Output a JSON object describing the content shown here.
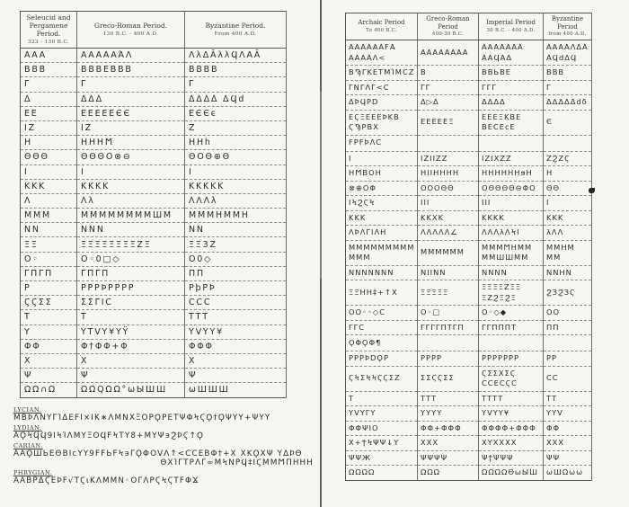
{
  "left_table": {
    "headers": [
      {
        "title": "Seleucid and Pergamene Period.",
        "dates": "323 - 130 B.C."
      },
      {
        "title": "Greco-Roman Period.",
        "dates": "130 B.C. - 400 A.D."
      },
      {
        "title": "Byzantine Period.",
        "dates": "From 400 A.D."
      }
    ],
    "rows": [
      [
        "ΑΑΑ",
        "ΑΑΑΑΑΆΛ",
        "ΛλΔĀλλϤΛΑĀ"
      ],
      [
        "ΒΒΒ",
        "ΒΒΒΕΒΒΒ",
        "ΒΒΒΒ"
      ],
      [
        "Γ",
        "Γ",
        "Γ"
      ],
      [
        "Δ",
        "ΔΔΔ",
        "ΔΔΔΔ ΔϤd"
      ],
      [
        "ΕΕ",
        "ΕΕΕΕΕЄЄ",
        "ΕЄЄϵ"
      ],
      [
        "ΙΖ",
        "ΙΖ",
        "Ζ"
      ],
      [
        "Η",
        "ΗΗΗϺ",
        "ΗΗh"
      ],
      [
        "ΘΘΘ",
        "ΘΘΘΟ⊗⊖",
        "ΘΟΘ⊕Θ"
      ],
      [
        "Ι",
        "Ι",
        "Ι"
      ],
      [
        "ΚΚΚ",
        "ΚΚΚΚ",
        "ΚΚΚΚΚ"
      ],
      [
        "Λ",
        "Λλ",
        "ΛΛΛλ"
      ],
      [
        "ΜΜΜ",
        "ΜΜΜΜΜΜΜΜШΜ",
        "ΜΜΜΗΜΜΗ"
      ],
      [
        "ΝΝ",
        "ΝΝΝ",
        "ΝΝ"
      ],
      [
        "ΞΞ",
        "ΞΞΞΞΞΞΞΞΖΞ",
        "ΞΞ3Ζ"
      ],
      [
        "Ο◦",
        "Ο◦0□◇",
        "Ο0◇"
      ],
      [
        "ΓΠΓΠ",
        "ΓΠΓΠ",
        "ΠΠ"
      ],
      [
        "Ρ",
        "ΡΡΡϷΡΡΡΡ",
        "ΡϸΡϷ"
      ],
      [
        "ϚϚΣΣ",
        "ΣΣΓΙϹ",
        "ϹϹϹ"
      ],
      [
        "Τ",
        "Τ",
        "ΤΤΤ"
      ],
      [
        "Υ",
        "ΥΤVΥ¥ΥΫ",
        "ΥVΥΥ¥"
      ],
      [
        "ΦΦ",
        "Φ†ΦΦ+Φ",
        "ΦΦΦ"
      ],
      [
        "Χ",
        "Χ",
        "Χ"
      ],
      [
        "Ψ",
        "Ψ",
        "Ψ"
      ],
      [
        "ΩΩ∩Ω",
        "ΩΩQΩΩ°ωЫШШ",
        "ωШШШ"
      ]
    ]
  },
  "right_table": {
    "headers": [
      {
        "title": "Archaic Period",
        "dates": "To 400 B.C."
      },
      {
        "title": "Greco-Roman Period",
        "dates": "400-30 B.C."
      },
      {
        "title": "Imperial Period",
        "dates": "30 B.C. - 400 A.D."
      },
      {
        "title": "Byzantine Period",
        "dates": "from 400 A.D."
      }
    ],
    "rows": [
      [
        "ΑΑΑΑΑΑϜΑ\nΑΑΑΑΛ<",
        "ΑΑΑΑΑΑΑΑ",
        "ΑΑΑΑΑΑΑ\nΑΑϤΑΔ",
        "ΑΑΑΑΛΔΑ\nΑϤdΔϤ"
      ],
      [
        "ΒϠΓΚΕΤΜΊΜϹΖ",
        "Β",
        "ΒΒЬΒΕ",
        "ΒΒΒ"
      ],
      [
        "ΓΝΓΛΓ<Ϲ",
        "ΓΓ",
        "ΓΓΓ",
        "Γ"
      ],
      [
        "ΔϷϤΡD",
        "Δ▷Δ",
        "ΔΔΔΔ",
        "ΔΔΔΔΔdδ"
      ],
      [
        "ΕϚΞΕΕΕϷΚΒ\nϚϠΡΒΧ",
        "ΕΕΕΕΕΞ",
        "ΕΕΕΞΚΒΕ\nΒΕϹΕϲΕ",
        "Є"
      ],
      [
        "ϜΡϜϷΛϹ",
        "",
        "",
        ""
      ],
      [
        "Ι",
        "ΙΖΙΙΖΖ",
        "ΙΖΙΧΖΖ",
        "ΖϨΖϚ"
      ],
      [
        "ΗϺΒΟΗ",
        "ΗΙΙΗΗΗΗ",
        "ΗΗΗΗΗΗϧΗ",
        "Η"
      ],
      [
        "⊗⊕ΟΦ",
        "ΟΟΟΘΘ",
        "ΟΘΘΘΘ⊖ΦΟ",
        "ΘΘ"
      ],
      [
        "ΙϞϨϚϞ",
        "ΙΙΙ",
        "ΙΙΙ",
        "Ι"
      ],
      [
        "ΚΚΚ",
        "ΚΚΧΚ",
        "ΚΚΚΚ",
        "ΚΚΚ"
      ],
      [
        "ΛϷΛΓΙΛΗ",
        "ΛΛΛΛΛ∠",
        "ΛΛΛλΛϞΙ",
        "λΛΛ"
      ],
      [
        "ΜΜΜΜΜΜΜΜΜ\nΜΜΜ",
        "ΜΜΜΜΜΜ",
        "ΜΜΜϺΗΜΜ\nΜΜШШΜΜ",
        "ΜΜΗΜ\nΜΜ"
      ],
      [
        "ΝΝΝΝΝΝΝ",
        "ΝΙΙΝΝ",
        "ΝΝΝΝ",
        "ΝΝΗΝ"
      ],
      [
        "ΞΞΗΗ‡+↑Χ",
        "ΞΞΞΞΞ",
        "ΞΞΞΞΖΞΞ\nΞΖϨΞϨΞ",
        "ϨЗϨЗϚ"
      ],
      [
        "ΟΟ◦◦◇Ϲ",
        "Ο◦□",
        "Ο◦◇◆",
        "ΟΟ"
      ],
      [
        "ΓΓϹ",
        "ΓΓΓΓΠΤΓΠ",
        "ΓΓΠΠΠΤ",
        "ΠΠ"
      ],
      [
        "ϘΦϘΦ¶",
        "",
        "",
        ""
      ],
      [
        "ΡΡΡϷDϘΡ",
        "ΡΡΡΡ",
        "ΡΡΡΡΡΡΡ",
        "ΡΡ"
      ],
      [
        "ϚϞΣϞϞϚϚΣΖ",
        "ΣΣϚϚΣΣ",
        "ϚΣΣΧΣϚ\nϹϹΕϹϚϹ",
        "ϹϹ"
      ],
      [
        "Τ",
        "ΤΤΤ",
        "ΤΤΤΤ",
        "ΤΤ"
      ],
      [
        "ΥVΥΓΥ",
        "ΥΥΥΥ",
        "ΥVΥΥ¥",
        "ΥΥV"
      ],
      [
        "ΦΦΨΙΟ",
        "ΦΦ+ΦΦΦ",
        "ΦΦΦΦ+ΦΦΦ",
        "ΦΦ"
      ],
      [
        "Χ+ϮϞΨΨ↓Υ",
        "ΧΧΧ",
        "ΧΥΧΧΧΧ",
        "ΧΧΧ"
      ],
      [
        "ΨΨЖ",
        "ΨΨΨΨ",
        "ΨϯΨΨΨ",
        "ΨΨ"
      ],
      [
        "ΩΩΩΩ",
        "ΩΩΩ",
        "ΩΩΩΩΘωЫШ",
        "ωШΩωω"
      ]
    ]
  },
  "footnotes": {
    "lycian_label": "LYCIAN.",
    "lycian_line": "ΜΒϷΛΝΥΓΊΔΕϜΙ×ΙΚ∗ΛΜΝΧΞΟΡϘΡΕΤΨΦϞϚϘ†ϘΨΥΥ+ΨΥΥ",
    "lydian_label": "LYDIAN.",
    "lydian_line": "ΑϘϞϤϤ9ΙϞΊΛΜΥΞΟϤϜϞΤΥ8+ΜΥΨ϶ϨϷϚ↑Ϙ",
    "carian_label": "CARIAN.",
    "carian_line1": "ΑΑϘШЬΕΘΒΙϲΥΥ9ϜϜЬϜϞ϶ΓϘΦΟVΛ↑<ϹϹΕΒΦ†+Χ ΧΚϘΧΨ ΥΔϷΘ",
    "carian_line2": "ΘΧΊΓΤΡΛΓ∞ΜϞΝΡϤ‡ΙϚΜΜϺΠΗΗΗ",
    "phrygian_label": "PHRYGIAN.",
    "phrygian_line": "ΑΑΒΡΔϚΕϷϜ√ΤϚιΚΛΜΜΝ◦ΟΓΛΡϚϞϚΤϜΦϪ"
  },
  "colors": {
    "ink": "#2b2a27",
    "paper": "#f7f6f2",
    "rule": "#55544f"
  }
}
